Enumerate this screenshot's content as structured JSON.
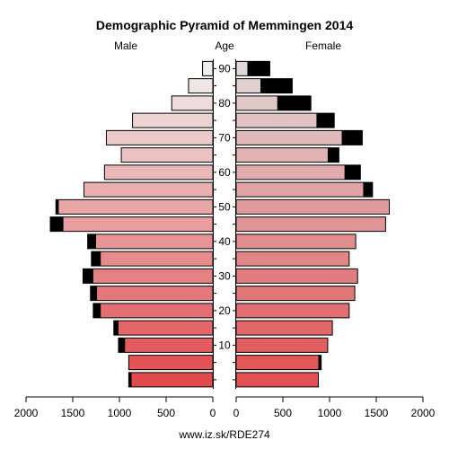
{
  "chart_data": {
    "type": "bar",
    "subtype": "population-pyramid",
    "title": "Demographic Pyramid of Memmingen 2014",
    "left_label": "Male",
    "center_label": "Age",
    "right_label": "Female",
    "source": "www.iz.sk/RDE274",
    "x_ticks": [
      2000,
      1500,
      1000,
      500,
      0
    ],
    "x_ticks_right": [
      0,
      500,
      1000,
      1500,
      2000
    ],
    "xlim": [
      0,
      2000
    ],
    "age_ticks": [
      10,
      20,
      30,
      40,
      50,
      60,
      70,
      80,
      90
    ],
    "age_groups": [
      "0-4",
      "5-9",
      "10-14",
      "15-19",
      "20-24",
      "25-29",
      "30-34",
      "35-39",
      "40-44",
      "45-49",
      "50-54",
      "55-59",
      "60-64",
      "65-69",
      "70-74",
      "75-79",
      "80-84",
      "85-89",
      "90+"
    ],
    "male": {
      "values": [
        900,
        900,
        1010,
        1060,
        1280,
        1310,
        1390,
        1300,
        1340,
        1740,
        1680,
        1380,
        1160,
        980,
        1140,
        860,
        440,
        260,
        110
      ],
      "surplus": [
        30,
        0,
        70,
        50,
        80,
        70,
        110,
        100,
        90,
        140,
        30,
        0,
        0,
        0,
        0,
        0,
        0,
        0,
        0
      ]
    },
    "female": {
      "values": [
        880,
        910,
        980,
        1030,
        1210,
        1270,
        1300,
        1210,
        1280,
        1600,
        1640,
        1460,
        1330,
        1100,
        1350,
        1050,
        800,
        600,
        360
      ],
      "surplus": [
        0,
        30,
        0,
        0,
        0,
        0,
        0,
        0,
        0,
        0,
        0,
        100,
        170,
        120,
        220,
        190,
        360,
        340,
        240
      ]
    }
  }
}
